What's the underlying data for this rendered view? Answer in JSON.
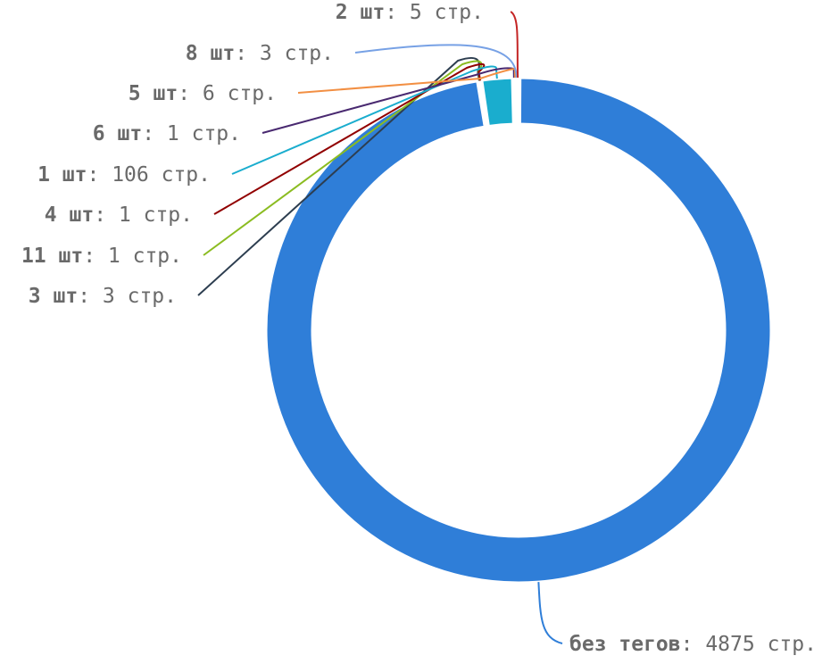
{
  "chart_data": {
    "type": "pie",
    "variant": "donut",
    "start": "top, clockwise",
    "slices": [
      {
        "key": "без тегов",
        "sep": ": ",
        "value": 4875,
        "unit": " стр.",
        "color": "#2f7ed8",
        "side": "right"
      },
      {
        "key": "3 шт",
        "sep": ": ",
        "value": 3,
        "unit": " стр.",
        "color": "#2d3e50",
        "side": "left"
      },
      {
        "key": "11 шт",
        "sep": ": ",
        "value": 1,
        "unit": " стр.",
        "color": "#8bbc21",
        "side": "left"
      },
      {
        "key": "4 шт",
        "sep": ": ",
        "value": 1,
        "unit": " стр.",
        "color": "#910000",
        "side": "left"
      },
      {
        "key": "1 шт",
        "sep": ": ",
        "value": 106,
        "unit": " стр.",
        "color": "#1aadce",
        "side": "left"
      },
      {
        "key": "6 шт",
        "sep": ": ",
        "value": 1,
        "unit": " стр.",
        "color": "#492970",
        "side": "left"
      },
      {
        "key": "5 шт",
        "sep": ": ",
        "value": 6,
        "unit": " стр.",
        "color": "#f28f43",
        "side": "left"
      },
      {
        "key": "8 шт",
        "sep": ": ",
        "value": 3,
        "unit": " стр.",
        "color": "#77a1e5",
        "side": "left"
      },
      {
        "key": "2 шт",
        "sep": ": ",
        "value": 5,
        "unit": " стр.",
        "color": "#c42525",
        "side": "left"
      }
    ]
  }
}
